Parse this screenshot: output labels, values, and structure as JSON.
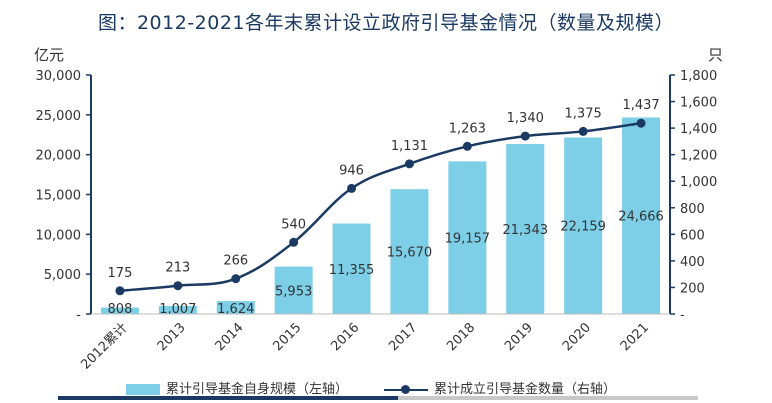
{
  "chart_data": {
    "type": "bar+line",
    "title": "图：2012-2021各年末累计设立政府引导基金情况（数量及规模）",
    "left_unit": "亿元",
    "right_unit": "只",
    "categories": [
      "2012累计",
      "2013",
      "2014",
      "2015",
      "2016",
      "2017",
      "2018",
      "2019",
      "2020",
      "2021"
    ],
    "bar_series": {
      "name": "累计引导基金自身规模（左轴）",
      "values": [
        808,
        1007,
        1624,
        5953,
        11355,
        15670,
        19157,
        21343,
        22159,
        24666
      ],
      "labels": [
        "808",
        "1,007",
        "1,624",
        "5,953",
        "11,355",
        "15,670",
        "19,157",
        "21,343",
        "22,159",
        "24,666"
      ]
    },
    "line_series": {
      "name": "累计成立引导基金数量（右轴）",
      "values": [
        175,
        213,
        266,
        540,
        946,
        1131,
        1263,
        1340,
        1375,
        1437
      ],
      "labels": [
        "175",
        "213",
        "266",
        "540",
        "946",
        "1,131",
        "1,263",
        "1,340",
        "1,375",
        "1,437"
      ]
    },
    "left_axis": {
      "min": 0,
      "max": 30000,
      "ticks": [
        0,
        5000,
        10000,
        15000,
        20000,
        25000,
        30000
      ],
      "tick_labels": [
        "-",
        "5,000",
        "10,000",
        "15,000",
        "20,000",
        "25,000",
        "30,000"
      ]
    },
    "right_axis": {
      "min": 0,
      "max": 1800,
      "ticks": [
        0,
        200,
        400,
        600,
        800,
        1000,
        1200,
        1400,
        1600,
        1800
      ],
      "tick_labels": [
        "-",
        "200",
        "400",
        "600",
        "800",
        "1,000",
        "1,200",
        "1,400",
        "1,600",
        "1,800"
      ]
    },
    "colors": {
      "bar": "#7dcfe8",
      "line": "#1b3a63",
      "axis": "#1b3a63",
      "text": "#333333"
    }
  }
}
